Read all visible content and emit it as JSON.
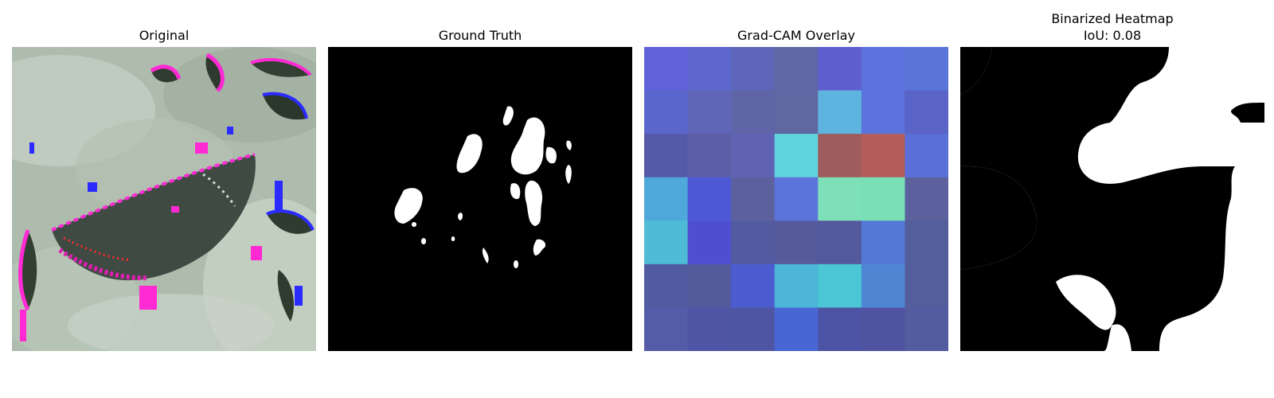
{
  "panels": [
    {
      "title": "Original"
    },
    {
      "title": "Ground Truth"
    },
    {
      "title": "Grad-CAM Overlay"
    },
    {
      "title_line1": "Binarized Heatmap",
      "title_line2": "IoU: 0.08"
    }
  ],
  "gradcam": {
    "rows": 7,
    "cols": 7,
    "cells": [
      [
        "#6062da",
        "#5c66cc",
        "#5d66b8",
        "#6167a4",
        "#5f5ecf",
        "#5c72dc",
        "#5b74d8"
      ],
      [
        "#5a66cc",
        "#5f66b8",
        "#6065a8",
        "#6167a1",
        "#5db5df",
        "#5c72dc",
        "#5a63c6"
      ],
      [
        "#5659a8",
        "#5d5fa6",
        "#6162b3",
        "#5fd4dc",
        "#9e5c5c",
        "#b35e5c",
        "#5970d8"
      ],
      [
        "#4ea8dc",
        "#4e58d4",
        "#5c619e",
        "#5b74dc",
        "#7ee0b8",
        "#78dfb6",
        "#5c619e"
      ],
      [
        "#4fbbd4",
        "#4e4fd0",
        "#545aa0",
        "#565a9c",
        "#54599e",
        "#5378d6",
        "#545e9c"
      ],
      [
        "#525aa0",
        "#545a9c",
        "#4c5bd0",
        "#4cb5d8",
        "#4ac6d4",
        "#4f86d4",
        "#545e9c"
      ],
      [
        "#545ca8",
        "#4f55a4",
        "#4e56a4",
        "#4867d4",
        "#4c52a4",
        "#5054a0",
        "#545ca0"
      ]
    ]
  },
  "iou": 0.08
}
